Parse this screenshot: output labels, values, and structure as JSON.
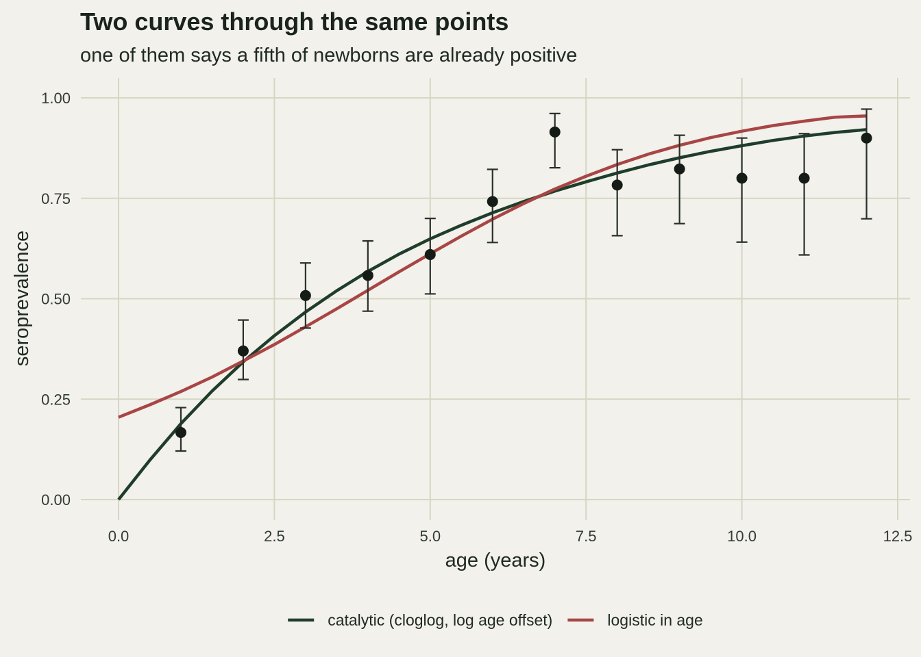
{
  "chart_data": {
    "type": "scatter",
    "title": "Two curves through the same points",
    "subtitle": "one of them says a fifth of newborns are already positive",
    "xlabel": "age (years)",
    "ylabel": "seroprevalence",
    "xlim": [
      0,
      12.5
    ],
    "ylim": [
      0,
      1
    ],
    "x_ticks": [
      0,
      2.5,
      5,
      7.5,
      10,
      12.5
    ],
    "x_tick_labels": [
      "0.0",
      "2.5",
      "5.0",
      "7.5",
      "10.0",
      "12.5"
    ],
    "y_ticks": [
      0,
      0.25,
      0.5,
      0.75,
      1
    ],
    "y_tick_labels": [
      "0.00",
      "0.25",
      "0.50",
      "0.75",
      "1.00"
    ],
    "grid": true,
    "legend_position": "bottom",
    "points": [
      {
        "x": 1,
        "y": 0.167,
        "lo": 0.121,
        "hi": 0.229
      },
      {
        "x": 2,
        "y": 0.37,
        "lo": 0.299,
        "hi": 0.447
      },
      {
        "x": 3,
        "y": 0.508,
        "lo": 0.427,
        "hi": 0.589
      },
      {
        "x": 4,
        "y": 0.558,
        "lo": 0.469,
        "hi": 0.644
      },
      {
        "x": 5,
        "y": 0.61,
        "lo": 0.512,
        "hi": 0.7
      },
      {
        "x": 6,
        "y": 0.742,
        "lo": 0.64,
        "hi": 0.822
      },
      {
        "x": 7,
        "y": 0.915,
        "lo": 0.826,
        "hi": 0.961
      },
      {
        "x": 8,
        "y": 0.783,
        "lo": 0.657,
        "hi": 0.871
      },
      {
        "x": 9,
        "y": 0.823,
        "lo": 0.687,
        "hi": 0.907
      },
      {
        "x": 10,
        "y": 0.8,
        "lo": 0.641,
        "hi": 0.9
      },
      {
        "x": 11,
        "y": 0.8,
        "lo": 0.609,
        "hi": 0.911
      },
      {
        "x": 12,
        "y": 0.9,
        "lo": 0.699,
        "hi": 0.972
      }
    ],
    "series": [
      {
        "name": "catalytic (cloglog, log age offset)",
        "color": "#1f3d2b",
        "x": [
          0,
          0.5,
          1,
          1.5,
          2,
          2.5,
          3,
          3.5,
          4,
          4.5,
          5,
          5.5,
          6,
          6.5,
          7,
          7.5,
          8,
          8.5,
          9,
          9.5,
          10,
          10.5,
          11,
          11.5,
          12
        ],
        "values": [
          0.0,
          0.098,
          0.189,
          0.27,
          0.343,
          0.408,
          0.467,
          0.52,
          0.568,
          0.611,
          0.649,
          0.683,
          0.714,
          0.742,
          0.768,
          0.791,
          0.813,
          0.833,
          0.851,
          0.867,
          0.881,
          0.894,
          0.905,
          0.914,
          0.921
        ]
      },
      {
        "name": "logistic in age",
        "color": "#a84545",
        "x": [
          0,
          0.5,
          1,
          1.5,
          2,
          2.5,
          3,
          3.5,
          4,
          4.5,
          5,
          5.5,
          6,
          6.5,
          7,
          7.5,
          8,
          8.5,
          9,
          9.5,
          10,
          10.5,
          11,
          11.5,
          12
        ],
        "values": [
          0.205,
          0.236,
          0.269,
          0.305,
          0.345,
          0.386,
          0.43,
          0.475,
          0.521,
          0.567,
          0.612,
          0.656,
          0.698,
          0.737,
          0.773,
          0.805,
          0.834,
          0.86,
          0.882,
          0.901,
          0.917,
          0.931,
          0.942,
          0.952,
          0.955
        ]
      }
    ],
    "point_color": "#151c17"
  }
}
